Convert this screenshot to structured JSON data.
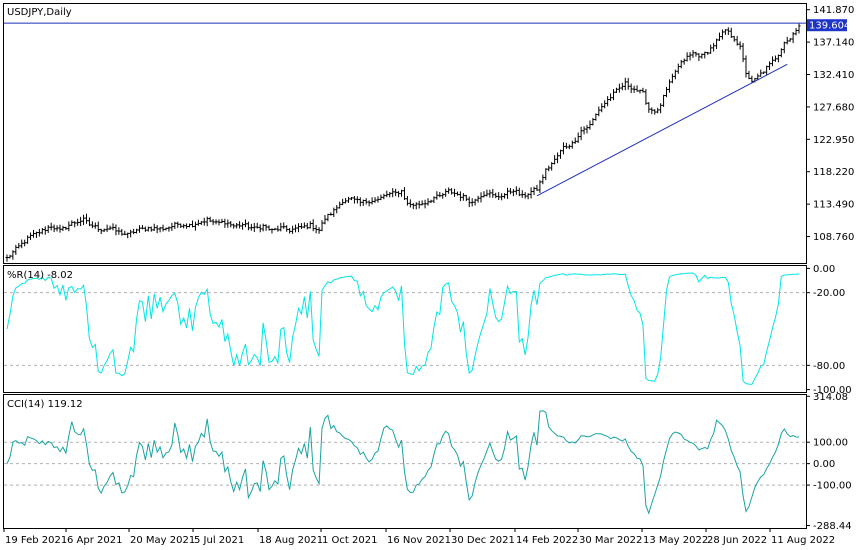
{
  "chart_data": [
    {
      "type": "candlestick",
      "title": "USDJPY,Daily",
      "current_price_label": "139.604",
      "current_price": 139.604,
      "ylim": [
        104.9,
        142.7
      ],
      "y_ticks": [
        "141.870",
        "137.140",
        "132.410",
        "127.680",
        "122.950",
        "118.220",
        "113.490",
        "108.760"
      ],
      "y_tick_values": [
        141.87,
        137.14,
        132.41,
        127.68,
        122.95,
        118.22,
        113.49,
        108.76
      ],
      "grid": false,
      "price_path": [
        [
          0,
          105.6
        ],
        [
          4,
          107.3
        ],
        [
          8,
          108.8
        ],
        [
          12,
          109.6
        ],
        [
          15,
          110.3
        ],
        [
          18,
          109.6
        ],
        [
          22,
          110.7
        ],
        [
          26,
          111.2
        ],
        [
          28,
          110.5
        ],
        [
          32,
          109.8
        ],
        [
          35,
          110.0
        ],
        [
          38,
          109.4
        ],
        [
          41,
          109.0
        ],
        [
          44,
          109.7
        ],
        [
          48,
          110.0
        ],
        [
          52,
          109.9
        ],
        [
          55,
          110.1
        ],
        [
          58,
          110.6
        ],
        [
          62,
          110.4
        ],
        [
          65,
          110.8
        ],
        [
          68,
          111.2
        ],
        [
          71,
          110.7
        ],
        [
          74,
          110.9
        ],
        [
          77,
          110.3
        ],
        [
          80,
          110.5
        ],
        [
          84,
          109.9
        ],
        [
          87,
          110.3
        ],
        [
          90,
          109.6
        ],
        [
          93,
          110.0
        ],
        [
          96,
          109.7
        ],
        [
          100,
          110.1
        ],
        [
          103,
          110.4
        ],
        [
          106,
          109.7
        ],
        [
          108,
          111.4
        ],
        [
          111,
          112.5
        ],
        [
          114,
          114.0
        ],
        [
          117,
          114.2
        ],
        [
          120,
          113.7
        ],
        [
          123,
          114.0
        ],
        [
          126,
          114.1
        ],
        [
          129,
          114.9
        ],
        [
          132,
          115.1
        ],
        [
          134,
          115.4
        ],
        [
          136,
          113.5
        ],
        [
          139,
          113.4
        ],
        [
          142,
          113.7
        ],
        [
          145,
          114.4
        ],
        [
          147,
          114.6
        ],
        [
          150,
          115.4
        ],
        [
          153,
          114.9
        ],
        [
          156,
          114.3
        ],
        [
          158,
          113.7
        ],
        [
          160,
          114.6
        ],
        [
          163,
          115.2
        ],
        [
          166,
          114.5
        ],
        [
          169,
          114.9
        ],
        [
          172,
          115.6
        ],
        [
          175,
          114.6
        ],
        [
          178,
          115.3
        ],
        [
          180,
          115.7
        ],
        [
          183,
          118.4
        ],
        [
          186,
          119.9
        ],
        [
          189,
          121.8
        ],
        [
          192,
          122.3
        ],
        [
          195,
          124.2
        ],
        [
          198,
          125.0
        ],
        [
          201,
          127.3
        ],
        [
          204,
          128.7
        ],
        [
          207,
          130.0
        ],
        [
          210,
          131.1
        ],
        [
          213,
          130.3
        ],
        [
          216,
          129.6
        ],
        [
          218,
          127.4
        ],
        [
          221,
          127.0
        ],
        [
          224,
          130.1
        ],
        [
          227,
          132.9
        ],
        [
          230,
          134.6
        ],
        [
          233,
          135.5
        ],
        [
          236,
          135.1
        ],
        [
          239,
          136.2
        ],
        [
          242,
          137.8
        ],
        [
          244,
          138.9
        ],
        [
          247,
          137.7
        ],
        [
          249,
          136.3
        ],
        [
          251,
          132.7
        ],
        [
          253,
          131.2
        ],
        [
          256,
          132.5
        ],
        [
          259,
          133.8
        ],
        [
          262,
          135.4
        ],
        [
          264,
          137.2
        ],
        [
          266,
          137.6
        ],
        [
          268,
          139.1
        ],
        [
          269,
          139.6
        ]
      ],
      "n_bars": 270,
      "trendline": [
        [
          180,
          114.7
        ],
        [
          265,
          133.9
        ]
      ],
      "hline": 139.9,
      "x_ticks": [
        "19 Feb 2021",
        "6 Apr 2021",
        "20 May 2021",
        "5 Jul 2021",
        "18 Aug 2021",
        "1 Oct 2021",
        "16 Nov 2021",
        "30 Dec 2021",
        "14 Feb 2022",
        "30 Mar 2022",
        "13 May 2022",
        "28 Jun 2022",
        "11 Aug 2022"
      ]
    },
    {
      "type": "line",
      "title": "%R(14) -8.02",
      "ylim": [
        -102,
        2
      ],
      "y_ticks": [
        "0.00",
        "-20.00",
        "-80.00",
        "-100.00"
      ],
      "y_tick_values": [
        0,
        -20,
        -80,
        -100
      ],
      "levels": [
        -20,
        -80
      ],
      "color": "#00e5e5"
    },
    {
      "type": "line",
      "title": "CCI(14) 119.12",
      "ylim": [
        -300,
        320
      ],
      "y_ticks": [
        "314.08",
        "100.00",
        "0.00",
        "-100.00",
        "-288.44"
      ],
      "y_tick_values": [
        314.08,
        100,
        0,
        -100,
        -288.44
      ],
      "levels": [
        100,
        -100
      ],
      "color": "#1aa3a3"
    }
  ]
}
